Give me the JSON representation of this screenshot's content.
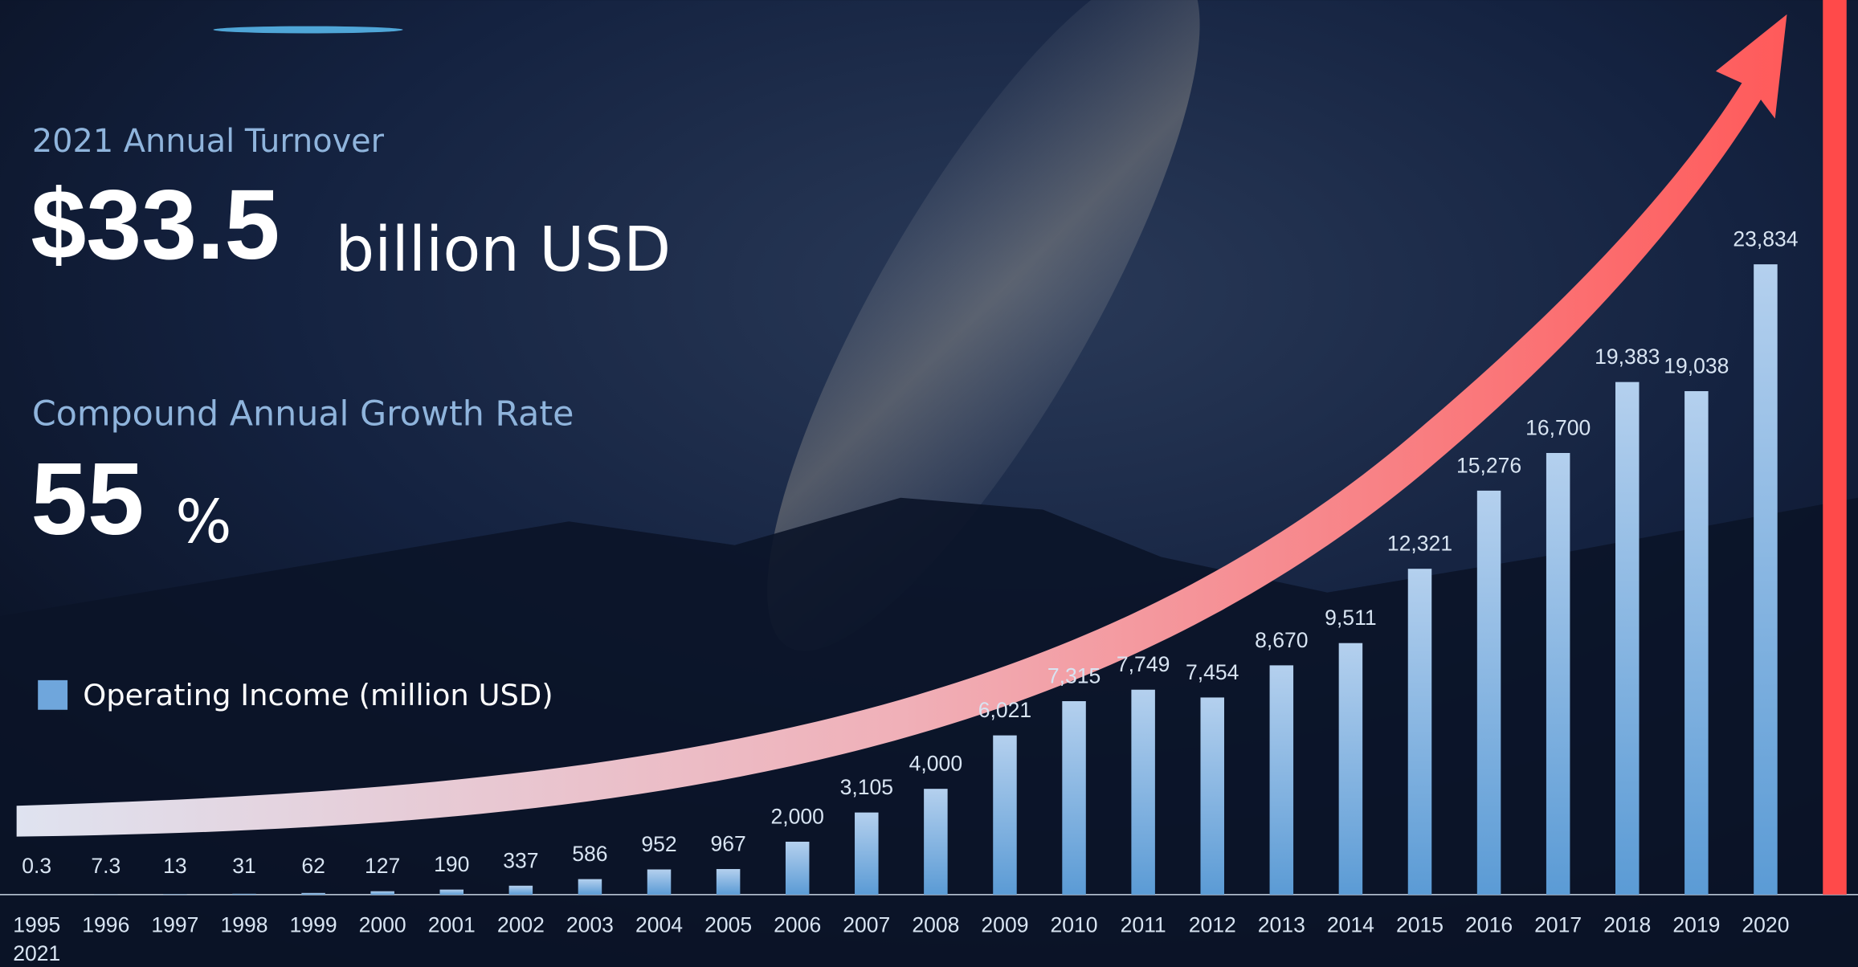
{
  "chart_data": {
    "type": "bar",
    "headline_label": "2021 Annual Turnover",
    "headline_value": "$33.5",
    "headline_unit": "billion USD",
    "growth_label": "Compound Annual Growth Rate",
    "growth_value": "55",
    "growth_unit": "%",
    "categories": [
      "1995",
      "1996",
      "1997",
      "1998",
      "1999",
      "2000",
      "2001",
      "2002",
      "2003",
      "2004",
      "2005",
      "2006",
      "2007",
      "2008",
      "2009",
      "2010",
      "2011",
      "2012",
      "2013",
      "2014",
      "2015",
      "2016",
      "2017",
      "2018",
      "2019",
      "2020",
      "2021"
    ],
    "series": [
      {
        "name": "Operating Income (million USD)",
        "color": "#6fa6dc",
        "colors": [
          "#6fa6dc",
          "#6fa6dc",
          "#6fa6dc",
          "#6fa6dc",
          "#6fa6dc",
          "#6fa6dc",
          "#6fa6dc",
          "#6fa6dc",
          "#6fa6dc",
          "#6fa6dc",
          "#6fa6dc",
          "#6fa6dc",
          "#6fa6dc",
          "#6fa6dc",
          "#6fa6dc",
          "#6fa6dc",
          "#6fa6dc",
          "#6fa6dc",
          "#6fa6dc",
          "#6fa6dc",
          "#6fa6dc",
          "#6fa6dc",
          "#6fa6dc",
          "#6fa6dc",
          "#6fa6dc",
          "#6fa6dc",
          "#ff4a4a"
        ],
        "values": [
          0.3,
          7.3,
          13,
          31,
          62,
          127,
          190,
          337,
          586,
          952,
          967,
          2000,
          3105,
          4000,
          6021,
          7315,
          7749,
          7454,
          8670,
          9511,
          12321,
          15276,
          16700,
          19383,
          19038,
          23834,
          34000
        ],
        "value_labels": [
          "0.3",
          "7.3",
          "13",
          "31",
          "62",
          "127",
          "190",
          "337",
          "586",
          "952",
          "967",
          "2,000",
          "3,105",
          "4,000",
          "6,021",
          "7,315",
          "7,749",
          "7,454",
          "8,670",
          "9,511",
          "12,321",
          "15,276",
          "16,700",
          "19,383",
          "19,038",
          "23,834",
          null
        ]
      }
    ],
    "ylim": [
      0,
      34000
    ]
  }
}
